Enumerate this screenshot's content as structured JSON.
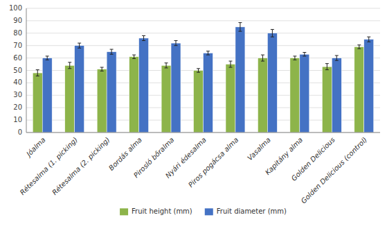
{
  "chart_data": {
    "type": "bar",
    "categories": [
      "Jóalma",
      "Rétesalma (1. picking)",
      "Rétesalma (2. picking)",
      "Bordás alma",
      "Pirosló bőralma",
      "Nyári édesalma",
      "Piros pogácsa alma",
      "Vasalma",
      "Kapitány alma",
      "Golden Delicious",
      "Golden Delicious (control)"
    ],
    "series": [
      {
        "name": "Fruit height (mm)",
        "color": "#8db44a",
        "values": [
          48,
          54,
          51,
          61,
          54,
          50,
          55,
          60,
          60,
          53,
          69
        ],
        "errors": [
          2.5,
          2.5,
          1.5,
          1.5,
          2,
          1.5,
          2.5,
          2.5,
          1.5,
          2.5,
          1.5
        ]
      },
      {
        "name": "Fruit diameter (mm)",
        "color": "#4472c4",
        "values": [
          60,
          70,
          65,
          76,
          72,
          64,
          85,
          80,
          63,
          60,
          75
        ],
        "errors": [
          1.5,
          2,
          2,
          2,
          2,
          1.5,
          3.5,
          3,
          1.5,
          2,
          2
        ]
      }
    ],
    "ylim": [
      0,
      100
    ],
    "yticks": [
      0,
      10,
      20,
      30,
      40,
      50,
      60,
      70,
      80,
      90,
      100
    ],
    "grid": true,
    "legend": "bottom"
  }
}
